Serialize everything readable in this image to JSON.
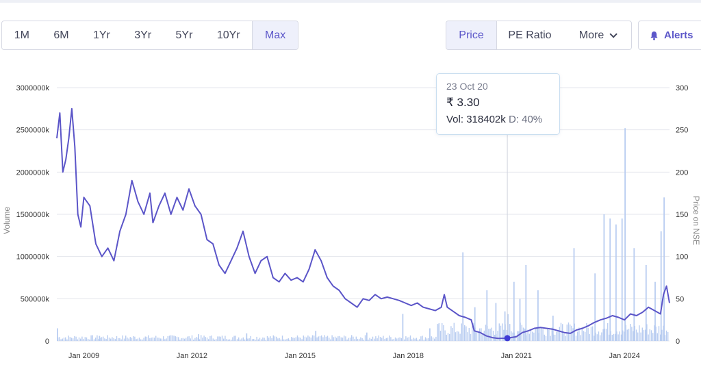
{
  "range_buttons": [
    "1M",
    "6M",
    "1Yr",
    "3Yr",
    "5Yr",
    "10Yr",
    "Max"
  ],
  "active_range": "Max",
  "metric_buttons": {
    "price": "Price",
    "pe_ratio": "PE Ratio",
    "more": "More"
  },
  "alerts_label": "Alerts",
  "tooltip": {
    "date": "23 Oct 20",
    "price": "₹ 3.30",
    "vol_label": "Vol:",
    "vol_value": "318402k",
    "delivery_label": "D:",
    "delivery_value": "40%"
  },
  "colors": {
    "price_line": "#5b55c8",
    "volume_bars": "#b9cdf1",
    "marker": "#3f3bd6",
    "accent": "#5c57c9"
  },
  "chart_data": {
    "type": "line",
    "title": "",
    "ylabel": "Volume",
    "y2label": "Price on NSE",
    "y_ticks": [
      "3000000k",
      "2500000k",
      "2000000k",
      "1500000k",
      "1000000k",
      "500000k",
      "0"
    ],
    "y2_ticks": [
      "300",
      "250",
      "200",
      "150",
      "100",
      "50",
      "0"
    ],
    "x_ticks": [
      "Jan 2009",
      "Jan 2012",
      "Jan 2015",
      "Jan 2018",
      "Jan 2021",
      "Jan 2024"
    ],
    "ylim": [
      0,
      3000000
    ],
    "y2lim": [
      0,
      300
    ],
    "x_range": [
      "2008-04",
      "2025-04"
    ],
    "grid": true,
    "series": [
      {
        "name": "Price",
        "axis": "right",
        "points": [
          [
            "2008-04",
            240
          ],
          [
            "2008-05",
            270
          ],
          [
            "2008-06",
            200
          ],
          [
            "2008-07",
            215
          ],
          [
            "2008-08",
            240
          ],
          [
            "2008-09",
            275
          ],
          [
            "2008-10",
            230
          ],
          [
            "2008-11",
            150
          ],
          [
            "2008-12",
            135
          ],
          [
            "2009-01",
            170
          ],
          [
            "2009-03",
            160
          ],
          [
            "2009-05",
            115
          ],
          [
            "2009-07",
            100
          ],
          [
            "2009-09",
            110
          ],
          [
            "2009-11",
            95
          ],
          [
            "2010-01",
            130
          ],
          [
            "2010-03",
            150
          ],
          [
            "2010-05",
            190
          ],
          [
            "2010-07",
            165
          ],
          [
            "2010-09",
            150
          ],
          [
            "2010-11",
            175
          ],
          [
            "2010-12",
            140
          ],
          [
            "2011-02",
            160
          ],
          [
            "2011-04",
            175
          ],
          [
            "2011-06",
            150
          ],
          [
            "2011-08",
            170
          ],
          [
            "2011-10",
            155
          ],
          [
            "2011-12",
            180
          ],
          [
            "2012-02",
            160
          ],
          [
            "2012-04",
            150
          ],
          [
            "2012-06",
            120
          ],
          [
            "2012-08",
            115
          ],
          [
            "2012-10",
            90
          ],
          [
            "2012-12",
            80
          ],
          [
            "2013-02",
            95
          ],
          [
            "2013-04",
            110
          ],
          [
            "2013-06",
            130
          ],
          [
            "2013-08",
            100
          ],
          [
            "2013-10",
            80
          ],
          [
            "2013-12",
            95
          ],
          [
            "2014-02",
            100
          ],
          [
            "2014-04",
            75
          ],
          [
            "2014-06",
            70
          ],
          [
            "2014-08",
            80
          ],
          [
            "2014-10",
            72
          ],
          [
            "2014-12",
            75
          ],
          [
            "2015-02",
            70
          ],
          [
            "2015-04",
            85
          ],
          [
            "2015-06",
            108
          ],
          [
            "2015-08",
            95
          ],
          [
            "2015-10",
            75
          ],
          [
            "2015-12",
            65
          ],
          [
            "2016-02",
            60
          ],
          [
            "2016-04",
            50
          ],
          [
            "2016-06",
            45
          ],
          [
            "2016-08",
            40
          ],
          [
            "2016-10",
            50
          ],
          [
            "2016-12",
            48
          ],
          [
            "2017-02",
            55
          ],
          [
            "2017-04",
            50
          ],
          [
            "2017-06",
            52
          ],
          [
            "2017-08",
            50
          ],
          [
            "2017-10",
            48
          ],
          [
            "2017-12",
            45
          ],
          [
            "2018-02",
            42
          ],
          [
            "2018-04",
            45
          ],
          [
            "2018-06",
            40
          ],
          [
            "2018-08",
            38
          ],
          [
            "2018-10",
            36
          ],
          [
            "2018-12",
            40
          ],
          [
            "2019-01",
            55
          ],
          [
            "2019-02",
            40
          ],
          [
            "2019-04",
            35
          ],
          [
            "2019-06",
            30
          ],
          [
            "2019-08",
            28
          ],
          [
            "2019-10",
            25
          ],
          [
            "2019-11",
            12
          ],
          [
            "2020-01",
            10
          ],
          [
            "2020-03",
            6
          ],
          [
            "2020-05",
            4
          ],
          [
            "2020-07",
            3
          ],
          [
            "2020-10",
            3.3
          ],
          [
            "2021-01",
            5
          ],
          [
            "2021-03",
            10
          ],
          [
            "2021-05",
            12
          ],
          [
            "2021-07",
            15
          ],
          [
            "2021-09",
            16
          ],
          [
            "2021-11",
            15
          ],
          [
            "2022-01",
            14
          ],
          [
            "2022-03",
            12
          ],
          [
            "2022-05",
            10
          ],
          [
            "2022-07",
            9
          ],
          [
            "2022-09",
            13
          ],
          [
            "2022-11",
            15
          ],
          [
            "2023-01",
            18
          ],
          [
            "2023-03",
            22
          ],
          [
            "2023-05",
            25
          ],
          [
            "2023-07",
            27
          ],
          [
            "2023-09",
            30
          ],
          [
            "2023-11",
            28
          ],
          [
            "2024-01",
            25
          ],
          [
            "2024-03",
            32
          ],
          [
            "2024-05",
            30
          ],
          [
            "2024-07",
            34
          ],
          [
            "2024-09",
            40
          ],
          [
            "2024-11",
            36
          ],
          [
            "2025-01",
            32
          ],
          [
            "2025-02",
            55
          ],
          [
            "2025-03",
            65
          ],
          [
            "2025-04",
            45
          ]
        ]
      },
      {
        "name": "Volume",
        "axis": "left",
        "type": "bar",
        "spikes": [
          [
            "2008-04",
            150000
          ],
          [
            "2009-06",
            60000
          ],
          [
            "2012-03",
            80000
          ],
          [
            "2013-07",
            90000
          ],
          [
            "2015-06",
            120000
          ],
          [
            "2016-11",
            100000
          ],
          [
            "2017-11",
            320000
          ],
          [
            "2018-08",
            150000
          ],
          [
            "2018-11",
            200000
          ],
          [
            "2019-07",
            1050000
          ],
          [
            "2019-11",
            400000
          ],
          [
            "2020-03",
            600000
          ],
          [
            "2020-06",
            450000
          ],
          [
            "2020-09",
            350000
          ],
          [
            "2020-10",
            318402
          ],
          [
            "2020-12",
            700000
          ],
          [
            "2021-02",
            500000
          ],
          [
            "2021-04",
            900000
          ],
          [
            "2021-08",
            600000
          ],
          [
            "2022-01",
            300000
          ],
          [
            "2022-08",
            1100000
          ],
          [
            "2023-03",
            800000
          ],
          [
            "2023-06",
            1500000
          ],
          [
            "2023-08",
            1450000
          ],
          [
            "2023-10",
            1380000
          ],
          [
            "2023-12",
            1450000
          ],
          [
            "2024-01",
            2520000
          ],
          [
            "2024-04",
            1100000
          ],
          [
            "2024-08",
            900000
          ],
          [
            "2024-11",
            700000
          ],
          [
            "2025-01",
            1300000
          ],
          [
            "2025-02",
            1700000
          ]
        ]
      }
    ],
    "highlight": {
      "date": "2020-10",
      "price": 3.3
    }
  }
}
